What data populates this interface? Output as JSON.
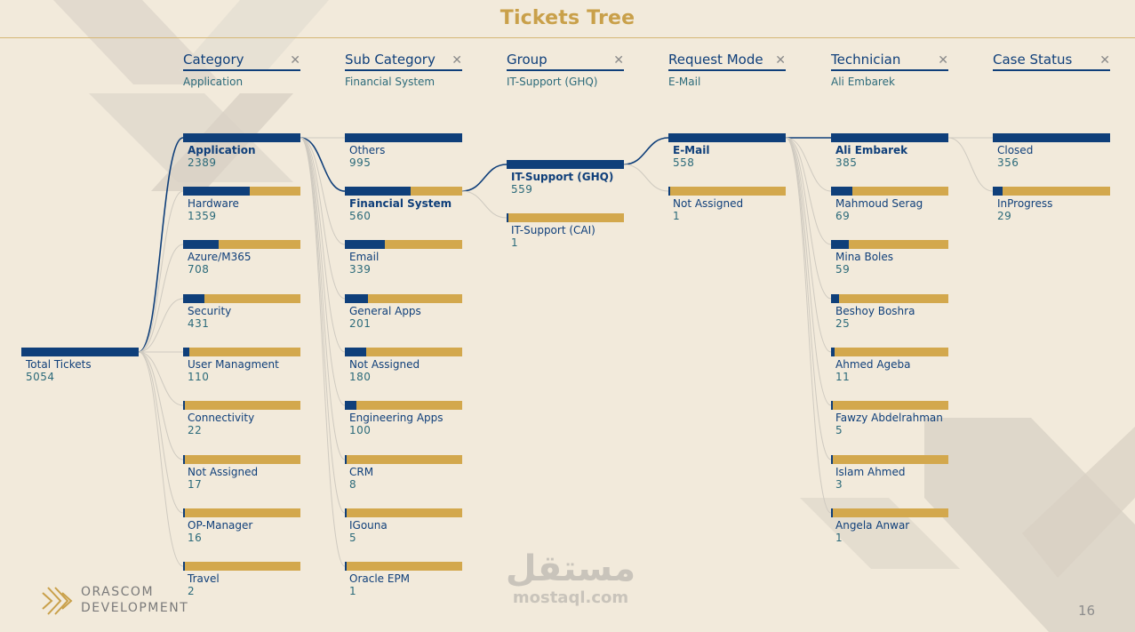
{
  "page": {
    "title": "Tickets Tree",
    "page_number": "16"
  },
  "colors": {
    "navy": "#0f3f7a",
    "gold": "#d3a84d",
    "teal": "#2b6a7a",
    "background": "#f2eadb"
  },
  "headers": [
    {
      "name": "Category",
      "selected": "Application"
    },
    {
      "name": "Sub Category",
      "selected": "Financial System"
    },
    {
      "name": "Group",
      "selected": "IT-Support (GHQ)"
    },
    {
      "name": "Request Mode",
      "selected": "E-Mail"
    },
    {
      "name": "Technician",
      "selected": "Ali Embarek"
    },
    {
      "name": "Case Status",
      "selected": ""
    }
  ],
  "root": {
    "label": "Total Tickets",
    "value": "5054",
    "fraction": 1.0
  },
  "columns": [
    [
      {
        "label": "Application",
        "value": "2389",
        "fraction": 1.0,
        "active": true
      },
      {
        "label": "Hardware",
        "value": "1359",
        "fraction": 0.57
      },
      {
        "label": "Azure/M365",
        "value": "708",
        "fraction": 0.3
      },
      {
        "label": "Security",
        "value": "431",
        "fraction": 0.18
      },
      {
        "label": "User Managment",
        "value": "110",
        "fraction": 0.05
      },
      {
        "label": "Connectivity",
        "value": "22",
        "fraction": 0.01
      },
      {
        "label": "Not Assigned",
        "value": "17",
        "fraction": 0.01
      },
      {
        "label": "OP-Manager",
        "value": "16",
        "fraction": 0.01
      },
      {
        "label": "Travel",
        "value": "2",
        "fraction": 0.0
      }
    ],
    [
      {
        "label": "Others",
        "value": "995",
        "fraction": 1.0
      },
      {
        "label": "Financial System",
        "value": "560",
        "fraction": 0.56,
        "active": true
      },
      {
        "label": "Email",
        "value": "339",
        "fraction": 0.34
      },
      {
        "label": "General Apps",
        "value": "201",
        "fraction": 0.2
      },
      {
        "label": "Not Assigned",
        "value": "180",
        "fraction": 0.18
      },
      {
        "label": "Engineering Apps",
        "value": "100",
        "fraction": 0.1
      },
      {
        "label": "CRM",
        "value": "8",
        "fraction": 0.01
      },
      {
        "label": "IGouna",
        "value": "5",
        "fraction": 0.005
      },
      {
        "label": "Oracle EPM",
        "value": "1",
        "fraction": 0.0
      }
    ],
    [
      {
        "label": "IT-Support (GHQ)",
        "value": "559",
        "fraction": 1.0,
        "active": true
      },
      {
        "label": "IT-Support (CAI)",
        "value": "1",
        "fraction": 0.0
      }
    ],
    [
      {
        "label": "E-Mail",
        "value": "558",
        "fraction": 1.0,
        "active": true
      },
      {
        "label": "Not Assigned",
        "value": "1",
        "fraction": 0.0
      }
    ],
    [
      {
        "label": "Ali Embarek",
        "value": "385",
        "fraction": 1.0,
        "active": true
      },
      {
        "label": "Mahmoud Serag",
        "value": "69",
        "fraction": 0.18
      },
      {
        "label": "Mina Boles",
        "value": "59",
        "fraction": 0.15
      },
      {
        "label": "Beshoy Boshra",
        "value": "25",
        "fraction": 0.065
      },
      {
        "label": "Ahmed Ageba",
        "value": "11",
        "fraction": 0.03
      },
      {
        "label": "Fawzy Abdelrahman",
        "value": "5",
        "fraction": 0.013
      },
      {
        "label": "Islam Ahmed",
        "value": "3",
        "fraction": 0.008
      },
      {
        "label": "Angela Anwar",
        "value": "1",
        "fraction": 0.003
      }
    ],
    [
      {
        "label": "Closed",
        "value": "356",
        "fraction": 1.0
      },
      {
        "label": "InProgress",
        "value": "29",
        "fraction": 0.08
      }
    ]
  ],
  "logo": {
    "line1": "ORASCOM",
    "line2": "DEVELOPMENT"
  },
  "watermark": {
    "arabic": "مستقل",
    "latin": "mostaql.com"
  }
}
